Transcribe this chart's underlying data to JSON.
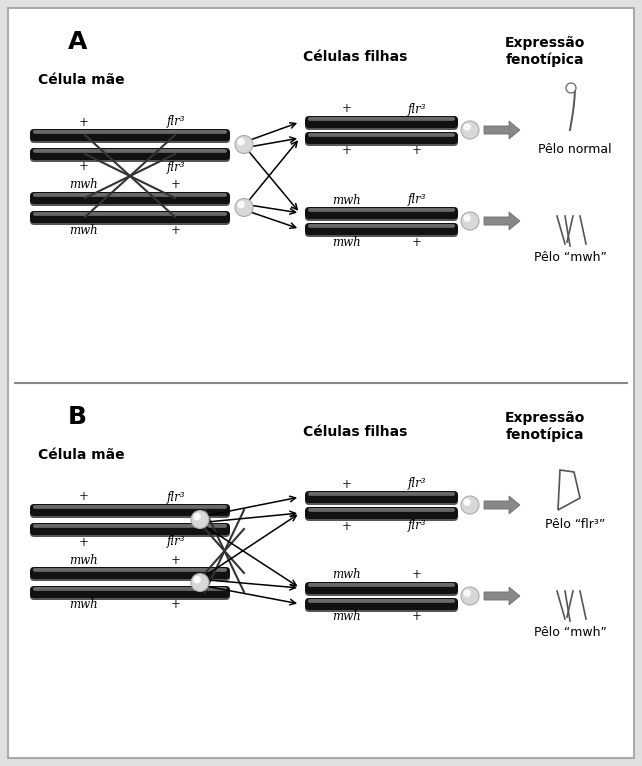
{
  "bg_color": "#e0e0e0",
  "panel_bg": "#ffffff",
  "figsize": [
    6.42,
    7.66
  ],
  "dpi": 100,
  "panel_A": {
    "label": "A",
    "mother_label": "Célula mãe",
    "daughter_label": "Células filhas",
    "expr_label": "Expressão\nfenotípica",
    "mother": {
      "chr1_top": [
        "+",
        "flr³"
      ],
      "chr1_bot": [
        "+",
        "flr³"
      ],
      "chr2_top": [
        "mwh",
        "+"
      ],
      "chr2_bot": [
        "mwh",
        "+"
      ]
    },
    "daughter_top": {
      "chr1": [
        "+",
        "flr³"
      ],
      "chr2": [
        "+",
        "+"
      ],
      "pheno": "Pêlo normal"
    },
    "daughter_bot": {
      "chr1": [
        "mwh",
        "flr³"
      ],
      "chr2": [
        "mwh",
        "+"
      ],
      "pheno": "Pêlo “mwh”"
    }
  },
  "panel_B": {
    "label": "B",
    "mother_label": "Célula mãe",
    "daughter_label": "Células filhas",
    "expr_label": "Expressão\nfenotípica",
    "mother": {
      "chr1_top": [
        "+",
        "flr³"
      ],
      "chr1_bot": [
        "+",
        "flr³"
      ],
      "chr2_top": [
        "mwh",
        "+"
      ],
      "chr2_bot": [
        "mwh",
        "+"
      ]
    },
    "daughter_top": {
      "chr1": [
        "+",
        "flr³"
      ],
      "chr2": [
        "+",
        "flr³"
      ],
      "pheno": "Pêlo “flr³”"
    },
    "daughter_bot": {
      "chr1": [
        "mwh",
        "+"
      ],
      "chr2": [
        "mwh",
        "+"
      ],
      "pheno": "Pêlo “mwh”"
    }
  }
}
